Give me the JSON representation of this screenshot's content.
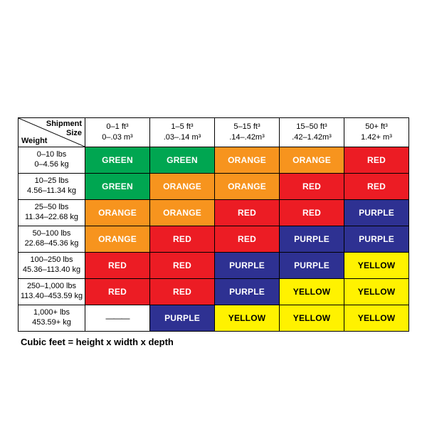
{
  "page": {
    "footnote": "Cubic feet = height x width x depth"
  },
  "table": {
    "corner": {
      "top_line1": "Shipment",
      "top_line2": "Size",
      "bottom": "Weight"
    },
    "columns": [
      {
        "line1": "0–1 ft³",
        "line2": "0–.03 m³"
      },
      {
        "line1": "1–5 ft³",
        "line2": ".03–.14 m³"
      },
      {
        "line1": "5–15 ft³",
        "line2": ".14–.42m³"
      },
      {
        "line1": "15–50 ft³",
        "line2": ".42–1.42m³"
      },
      {
        "line1": "50+ ft³",
        "line2": "1.42+ m³"
      }
    ],
    "rows": [
      {
        "label1": "0–10 lbs",
        "label2": "0–4.56 kg",
        "cells": [
          "GREEN",
          "GREEN",
          "ORANGE",
          "ORANGE",
          "RED"
        ]
      },
      {
        "label1": "10–25 lbs",
        "label2": "4.56–11.34 kg",
        "cells": [
          "GREEN",
          "ORANGE",
          "ORANGE",
          "RED",
          "RED"
        ]
      },
      {
        "label1": "25–50 lbs",
        "label2": "11.34–22.68 kg",
        "cells": [
          "ORANGE",
          "ORANGE",
          "RED",
          "RED",
          "PURPLE"
        ]
      },
      {
        "label1": "50–100 lbs",
        "label2": "22.68–45.36 kg",
        "cells": [
          "ORANGE",
          "RED",
          "RED",
          "PURPLE",
          "PURPLE"
        ]
      },
      {
        "label1": "100–250 lbs",
        "label2": "45.36–113.40 kg",
        "cells": [
          "RED",
          "RED",
          "PURPLE",
          "PURPLE",
          "YELLOW"
        ]
      },
      {
        "label1": "250–1,000 lbs",
        "label2": "113.40–453.59 kg",
        "cells": [
          "RED",
          "RED",
          "PURPLE",
          "YELLOW",
          "YELLOW"
        ]
      },
      {
        "label1": "1,000+ lbs",
        "label2": "453.59+ kg",
        "cells": [
          "———",
          "PURPLE",
          "YELLOW",
          "YELLOW",
          "YELLOW"
        ]
      }
    ]
  },
  "colors": {
    "GREEN": {
      "bg": "#00a651",
      "fg": "#ffffff"
    },
    "ORANGE": {
      "bg": "#f7941e",
      "fg": "#ffffff"
    },
    "RED": {
      "bg": "#ec1c24",
      "fg": "#ffffff"
    },
    "PURPLE": {
      "bg": "#2e3192",
      "fg": "#ffffff"
    },
    "YELLOW": {
      "bg": "#fff200",
      "fg": "#000000"
    }
  },
  "chart_data": {
    "type": "table",
    "columns_cubic_feet": [
      "0–1",
      "1–5",
      "5–15",
      "15–50",
      "50+"
    ],
    "columns_cubic_meters": [
      "0–.03",
      ".03–.14",
      ".14–.42",
      ".42–1.42",
      "1.42+"
    ],
    "rows_pounds": [
      "0–10",
      "10–25",
      "25–50",
      "50–100",
      "100–250",
      "250–1,000",
      "1,000+"
    ],
    "rows_kilograms": [
      "0–4.56",
      "4.56–11.34",
      "11.34–22.68",
      "22.68–45.36",
      "45.36–113.40",
      "113.40–453.59",
      "453.59+"
    ],
    "matrix": [
      [
        "GREEN",
        "GREEN",
        "ORANGE",
        "ORANGE",
        "RED"
      ],
      [
        "GREEN",
        "ORANGE",
        "ORANGE",
        "RED",
        "RED"
      ],
      [
        "ORANGE",
        "ORANGE",
        "RED",
        "RED",
        "PURPLE"
      ],
      [
        "ORANGE",
        "RED",
        "RED",
        "PURPLE",
        "PURPLE"
      ],
      [
        "RED",
        "RED",
        "PURPLE",
        "PURPLE",
        "YELLOW"
      ],
      [
        "RED",
        "RED",
        "PURPLE",
        "YELLOW",
        "YELLOW"
      ],
      [
        "NONE",
        "PURPLE",
        "YELLOW",
        "YELLOW",
        "YELLOW"
      ]
    ],
    "footnote": "Cubic feet = height x width x depth"
  }
}
